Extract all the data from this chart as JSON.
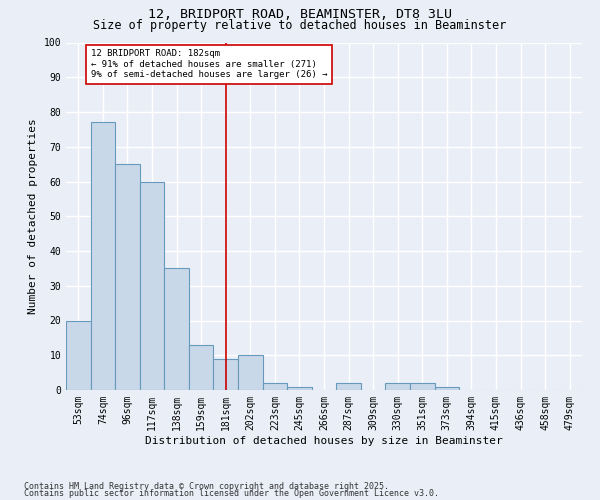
{
  "title1": "12, BRIDPORT ROAD, BEAMINSTER, DT8 3LU",
  "title2": "Size of property relative to detached houses in Beaminster",
  "xlabel": "Distribution of detached houses by size in Beaminster",
  "ylabel": "Number of detached properties",
  "categories": [
    "53sqm",
    "74sqm",
    "96sqm",
    "117sqm",
    "138sqm",
    "159sqm",
    "181sqm",
    "202sqm",
    "223sqm",
    "245sqm",
    "266sqm",
    "287sqm",
    "309sqm",
    "330sqm",
    "351sqm",
    "373sqm",
    "394sqm",
    "415sqm",
    "436sqm",
    "458sqm",
    "479sqm"
  ],
  "values": [
    20,
    77,
    65,
    60,
    35,
    13,
    9,
    10,
    2,
    1,
    0,
    2,
    0,
    2,
    2,
    1,
    0,
    0,
    0,
    0,
    0
  ],
  "bar_color": "#c8d8e8",
  "bar_edge_color": "#6699bb",
  "vline_x_index": 6,
  "vline_color": "#cc0000",
  "annotation_text": "12 BRIDPORT ROAD: 182sqm\n← 91% of detached houses are smaller (271)\n9% of semi-detached houses are larger (26) →",
  "annotation_box_color": "#ffffff",
  "annotation_box_edge": "#cc0000",
  "ylim": [
    0,
    100
  ],
  "yticks": [
    0,
    10,
    20,
    30,
    40,
    50,
    60,
    70,
    80,
    90,
    100
  ],
  "footer1": "Contains HM Land Registry data © Crown copyright and database right 2025.",
  "footer2": "Contains public sector information licensed under the Open Government Licence v3.0.",
  "bg_color": "#eaeff7",
  "plot_bg_color": "#eaeff7",
  "grid_color": "#ffffff",
  "title1_fontsize": 9.5,
  "title2_fontsize": 8.5,
  "axis_label_fontsize": 8,
  "tick_fontsize": 7,
  "annotation_fontsize": 6.5,
  "footer_fontsize": 6
}
